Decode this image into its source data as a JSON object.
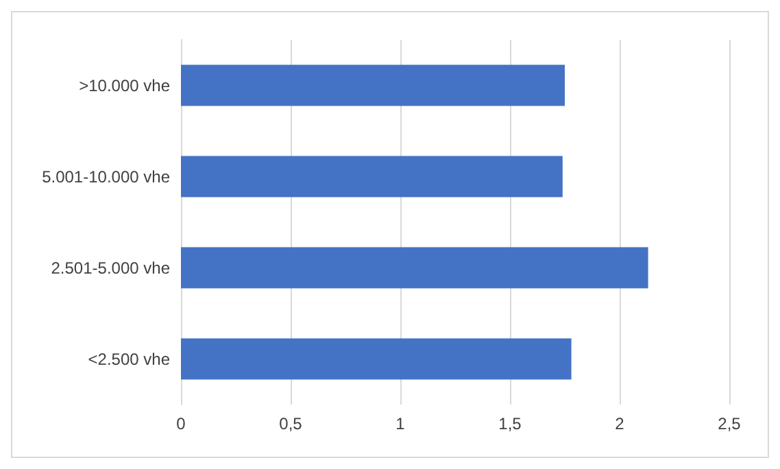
{
  "chart_data": {
    "type": "bar",
    "orientation": "horizontal",
    "categories": [
      ">10.000 vhe",
      "5.001-10.000 vhe",
      "2.501-5.000 vhe",
      "<2.500 vhe"
    ],
    "values": [
      1.75,
      1.74,
      2.13,
      1.78
    ],
    "color": "#4472c4",
    "xlim": [
      0,
      2.5
    ],
    "xticks": [
      0,
      {
        "value": 0.5,
        "label": "0,5"
      },
      1,
      {
        "value": 1.5,
        "label": "1,5"
      },
      2,
      {
        "value": 2.5,
        "label": "2,5"
      }
    ],
    "grid": "x"
  }
}
